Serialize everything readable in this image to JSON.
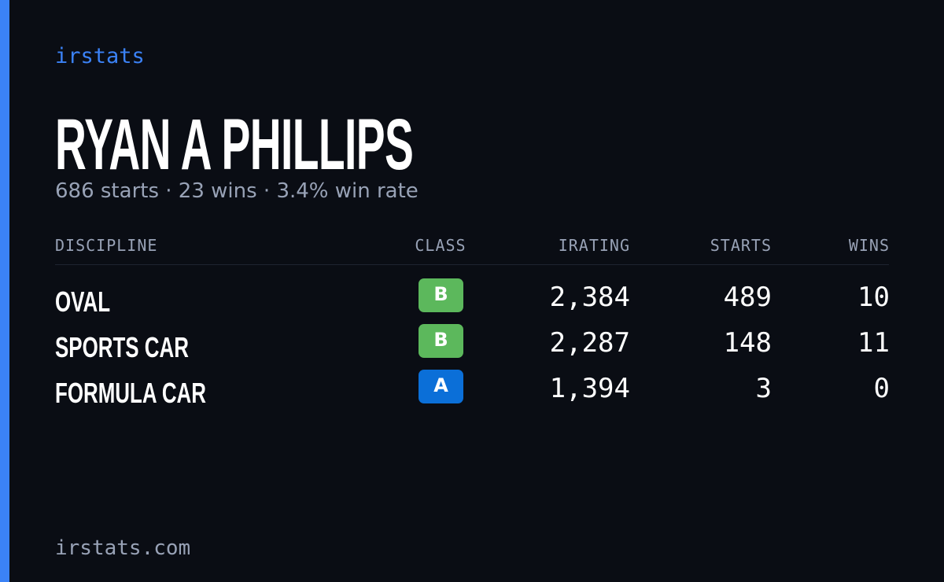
{
  "brand": "irstats",
  "driver_name": "RYAN A PHILLIPS",
  "summary": "686 starts · 23 wins · 3.4% win rate",
  "table": {
    "headers": [
      "DISCIPLINE",
      "CLASS",
      "IRATING",
      "STARTS",
      "WINS"
    ],
    "rows": [
      {
        "discipline": "OVAL",
        "class": "B",
        "class_color": "#5cb85c",
        "irating": "2,384",
        "starts": "489",
        "wins": "10"
      },
      {
        "discipline": "SPORTS CAR",
        "class": "B",
        "class_color": "#5cb85c",
        "irating": "2,287",
        "starts": "148",
        "wins": "11"
      },
      {
        "discipline": "FORMULA CAR",
        "class": "A",
        "class_color": "#0b6fd8",
        "irating": "1,394",
        "starts": "3",
        "wins": "0"
      }
    ]
  },
  "footer": "irstats.com"
}
